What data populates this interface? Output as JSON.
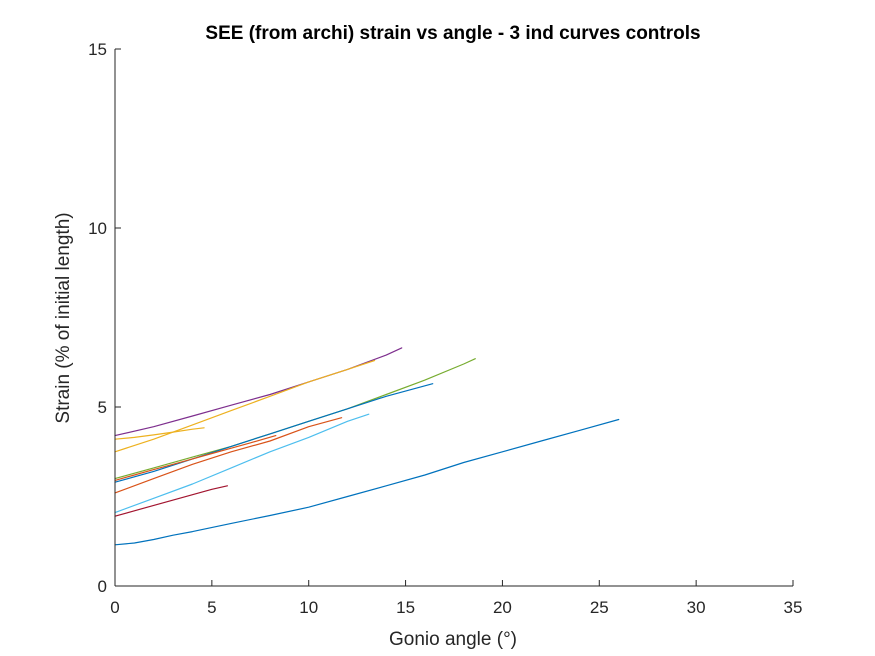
{
  "chart_data": {
    "type": "line",
    "title": "SEE (from archi) strain vs angle - 3 ind curves controls",
    "xlabel": "Gonio angle (°)",
    "ylabel": "Strain (% of initial length)",
    "xlim": [
      0,
      35
    ],
    "ylim": [
      0,
      15
    ],
    "x_ticks": [
      0,
      5,
      10,
      15,
      20,
      25,
      30,
      35
    ],
    "y_ticks": [
      0,
      5,
      10,
      15
    ],
    "grid": false,
    "legend": "none",
    "series": [
      {
        "color": "#0072BD",
        "x": [
          0,
          1,
          2,
          3,
          4,
          6,
          8,
          10,
          12,
          14,
          16,
          18,
          20,
          22,
          24,
          26
        ],
        "y": [
          1.15,
          1.2,
          1.3,
          1.42,
          1.52,
          1.75,
          1.97,
          2.2,
          2.5,
          2.8,
          3.1,
          3.45,
          3.75,
          4.05,
          4.35,
          4.65
        ]
      },
      {
        "color": "#D95319",
        "x": [
          0,
          2,
          4,
          6,
          8,
          10,
          11.7
        ],
        "y": [
          2.6,
          3.0,
          3.4,
          3.75,
          4.05,
          4.45,
          4.7
        ]
      },
      {
        "color": "#EDB120",
        "x": [
          0,
          1,
          2,
          3,
          4,
          4.6
        ],
        "y": [
          4.1,
          4.15,
          4.22,
          4.3,
          4.38,
          4.42
        ]
      },
      {
        "color": "#7E2F8E",
        "x": [
          0,
          2,
          4,
          6,
          8,
          10,
          12,
          14,
          14.8
        ],
        "y": [
          4.2,
          4.45,
          4.75,
          5.05,
          5.35,
          5.7,
          6.05,
          6.45,
          6.65
        ]
      },
      {
        "color": "#77AC30",
        "x": [
          0,
          2,
          4,
          6,
          8,
          10,
          12,
          14,
          16,
          18,
          18.6
        ],
        "y": [
          3.0,
          3.3,
          3.6,
          3.9,
          4.25,
          4.6,
          4.95,
          5.35,
          5.75,
          6.2,
          6.35
        ]
      },
      {
        "color": "#4DBEEE",
        "x": [
          0,
          2,
          4,
          6,
          8,
          10,
          12,
          13.1
        ],
        "y": [
          2.05,
          2.45,
          2.85,
          3.3,
          3.75,
          4.15,
          4.6,
          4.8
        ]
      },
      {
        "color": "#A2142F",
        "x": [
          0,
          1,
          2,
          3,
          4,
          5,
          5.8
        ],
        "y": [
          1.95,
          2.1,
          2.25,
          2.4,
          2.55,
          2.7,
          2.8
        ]
      },
      {
        "color": "#0072BD",
        "x": [
          0,
          2,
          4,
          6,
          8,
          10,
          12,
          14,
          16.4
        ],
        "y": [
          2.9,
          3.2,
          3.55,
          3.9,
          4.25,
          4.6,
          4.95,
          5.3,
          5.65
        ]
      },
      {
        "color": "#D95319",
        "x": [
          0,
          1,
          2,
          3,
          4,
          5,
          6,
          7,
          8.3
        ],
        "y": [
          2.95,
          3.1,
          3.25,
          3.4,
          3.55,
          3.7,
          3.85,
          4.0,
          4.2
        ]
      },
      {
        "color": "#EDB120",
        "x": [
          0,
          2,
          4,
          6,
          8,
          10,
          12,
          13.4
        ],
        "y": [
          3.75,
          4.1,
          4.5,
          4.9,
          5.3,
          5.7,
          6.05,
          6.3
        ]
      }
    ]
  }
}
